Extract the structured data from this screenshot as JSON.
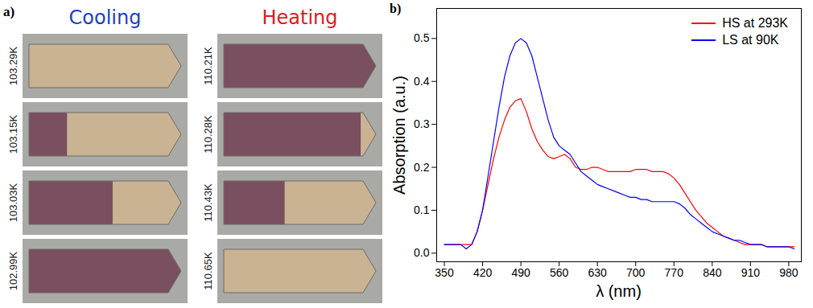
{
  "panel_a": {
    "label": "a)",
    "colors": {
      "LS": "#7a4f60",
      "HS": "#c9b393"
    },
    "columns": [
      {
        "title": "Cooling",
        "color": "#1a3fc4",
        "frames": [
          {
            "label": "103.29K",
            "ls_fraction": 0
          },
          {
            "label": "103.15K",
            "ls_fraction": 0.25
          },
          {
            "label": "103.03K",
            "ls_fraction": 0.55
          },
          {
            "label": "102.99K",
            "ls_fraction": 1
          }
        ]
      },
      {
        "title": "Heating",
        "color": "#e01b24",
        "frames": [
          {
            "label": "110.21K",
            "ls_fraction": 1
          },
          {
            "label": "110.28K",
            "ls_fraction": 0.9
          },
          {
            "label": "110.43K",
            "ls_fraction": 0.4
          },
          {
            "label": "110.65K",
            "ls_fraction": 0
          }
        ]
      }
    ]
  },
  "chart_data": {
    "type": "line",
    "panel_label": "b)",
    "x_label": "λ (nm)",
    "y_label": "Absorption (a.u.)",
    "x": [
      350,
      360,
      370,
      380,
      390,
      400,
      410,
      420,
      430,
      440,
      450,
      460,
      470,
      480,
      490,
      500,
      510,
      520,
      530,
      540,
      550,
      560,
      570,
      580,
      590,
      600,
      610,
      620,
      630,
      640,
      650,
      660,
      670,
      680,
      690,
      700,
      710,
      720,
      730,
      740,
      750,
      760,
      770,
      780,
      790,
      800,
      810,
      820,
      830,
      840,
      850,
      860,
      870,
      880,
      890,
      900,
      910,
      920,
      930,
      940,
      950,
      960,
      970,
      980,
      990
    ],
    "series": [
      {
        "name": "HS at 293K",
        "color": "#ff0000",
        "values": [
          0.02,
          0.02,
          0.02,
          0.02,
          0.02,
          0.02,
          0.05,
          0.1,
          0.16,
          0.22,
          0.27,
          0.31,
          0.34,
          0.355,
          0.36,
          0.33,
          0.29,
          0.26,
          0.24,
          0.225,
          0.22,
          0.225,
          0.23,
          0.22,
          0.2,
          0.195,
          0.195,
          0.2,
          0.2,
          0.195,
          0.19,
          0.19,
          0.19,
          0.19,
          0.19,
          0.195,
          0.195,
          0.195,
          0.19,
          0.19,
          0.19,
          0.185,
          0.175,
          0.16,
          0.14,
          0.12,
          0.1,
          0.085,
          0.07,
          0.06,
          0.05,
          0.04,
          0.035,
          0.03,
          0.025,
          0.02,
          0.02,
          0.02,
          0.02,
          0.015,
          0.015,
          0.015,
          0.015,
          0.015,
          0.015
        ]
      },
      {
        "name": "LS at 90K",
        "color": "#0000ff",
        "values": [
          0.02,
          0.02,
          0.02,
          0.02,
          0.01,
          0.02,
          0.05,
          0.1,
          0.18,
          0.26,
          0.34,
          0.41,
          0.46,
          0.49,
          0.5,
          0.49,
          0.46,
          0.41,
          0.36,
          0.31,
          0.27,
          0.25,
          0.24,
          0.23,
          0.21,
          0.19,
          0.18,
          0.17,
          0.16,
          0.155,
          0.15,
          0.145,
          0.14,
          0.135,
          0.13,
          0.13,
          0.125,
          0.125,
          0.12,
          0.12,
          0.12,
          0.12,
          0.12,
          0.115,
          0.105,
          0.09,
          0.08,
          0.07,
          0.06,
          0.05,
          0.045,
          0.04,
          0.035,
          0.03,
          0.03,
          0.025,
          0.02,
          0.02,
          0.02,
          0.015,
          0.015,
          0.015,
          0.015,
          0.015,
          0.01
        ]
      }
    ],
    "xlim": [
      336,
      1003
    ],
    "xticks": [
      350,
      420,
      490,
      560,
      630,
      700,
      770,
      840,
      910,
      980
    ],
    "ylim": [
      -0.02,
      0.57
    ],
    "yticks": [
      {
        "value": 0,
        "label": "0.0"
      },
      {
        "value": 0.1,
        "label": "0.1"
      },
      {
        "value": 0.2,
        "label": "0.2"
      },
      {
        "value": 0.3,
        "label": "0.3"
      },
      {
        "value": 0.4,
        "label": "0.4"
      },
      {
        "value": 0.5,
        "label": "0.5"
      }
    ],
    "legend": "upper right",
    "grid": false
  }
}
